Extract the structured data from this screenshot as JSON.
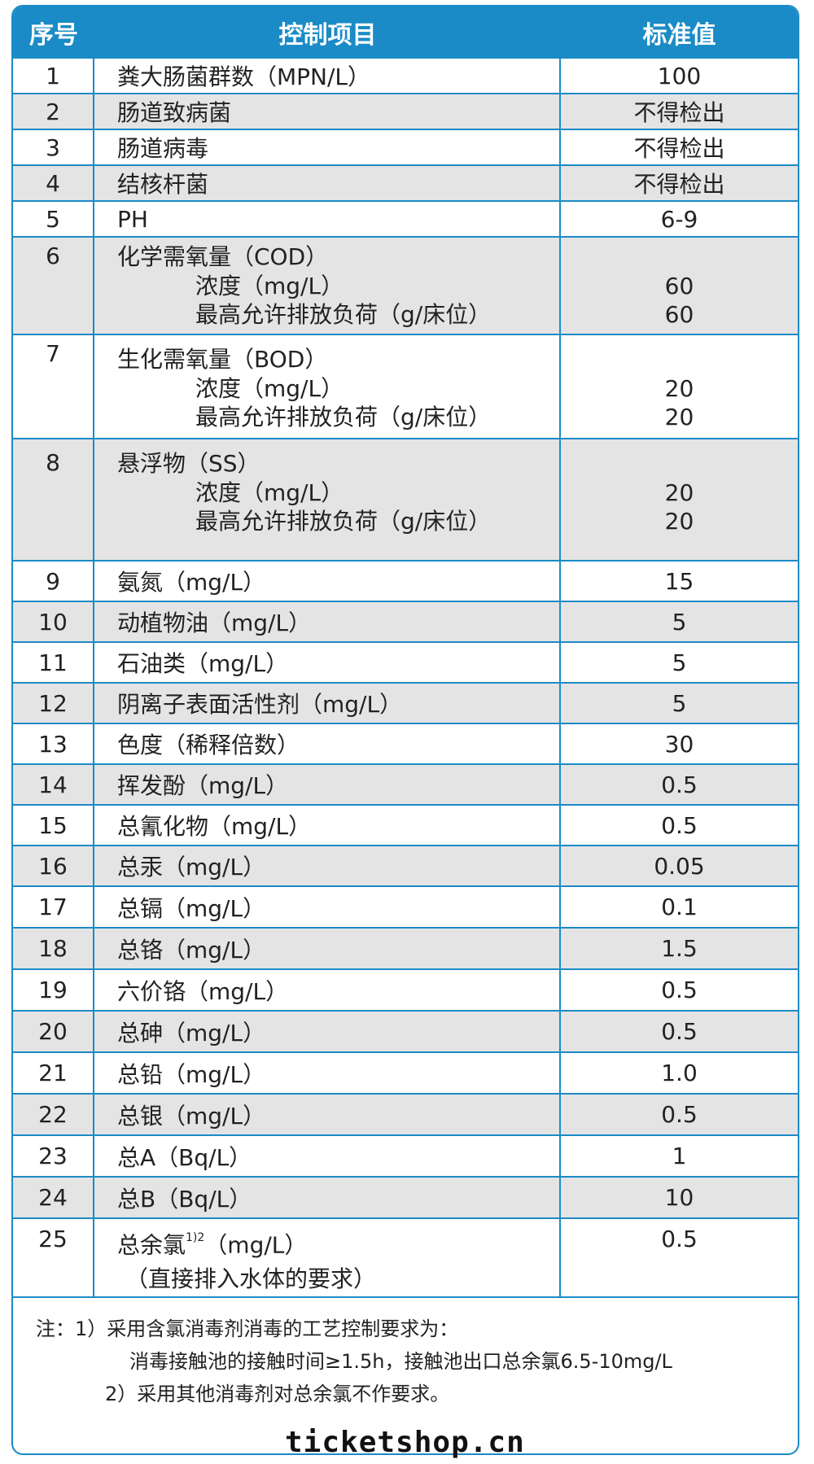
{
  "header": {
    "col_index": "序号",
    "col_item": "控制项目",
    "col_value": "标准值"
  },
  "rows": [
    {
      "n": "1",
      "item": "粪大肠菌群数（MPN/L）",
      "value": "100"
    },
    {
      "n": "2",
      "item": "肠道致病菌",
      "value": "不得检出"
    },
    {
      "n": "3",
      "item": "肠道病毒",
      "value": "不得检出"
    },
    {
      "n": "4",
      "item": "结核杆菌",
      "value": "不得检出"
    },
    {
      "n": "5",
      "item": "PH",
      "value": "6-9"
    },
    {
      "n": "6",
      "item": "化学需氧量（COD）",
      "sub1": "浓度（mg/L）",
      "sub2": "最高允许排放负荷（g/床位）",
      "v1": "60",
      "v2": "60"
    },
    {
      "n": "7",
      "item": "生化需氧量（BOD）",
      "sub1": "浓度（mg/L）",
      "sub2": "最高允许排放负荷（g/床位）",
      "v1": "20",
      "v2": "20"
    },
    {
      "n": "8",
      "item": "悬浮物（SS）",
      "sub1": "浓度（mg/L）",
      "sub2": "最高允许排放负荷（g/床位）",
      "v1": "20",
      "v2": "20"
    },
    {
      "n": "9",
      "item": "氨氮（mg/L）",
      "value": "15"
    },
    {
      "n": "10",
      "item": "动植物油（mg/L）",
      "value": "5"
    },
    {
      "n": "11",
      "item": "石油类（mg/L）",
      "value": "5"
    },
    {
      "n": "12",
      "item": "阴离子表面活性剂（mg/L）",
      "value": "5"
    },
    {
      "n": "13",
      "item": "色度（稀释倍数）",
      "value": "30"
    },
    {
      "n": "14",
      "item": "挥发酚（mg/L）",
      "value": "0.5"
    },
    {
      "n": "15",
      "item": "总氰化物（mg/L）",
      "value": "0.5"
    },
    {
      "n": "16",
      "item": "总汞（mg/L）",
      "value": "0.05"
    },
    {
      "n": "17",
      "item": "总镉（mg/L）",
      "value": "0.1"
    },
    {
      "n": "18",
      "item": "总铬（mg/L）",
      "value": "1.5"
    },
    {
      "n": "19",
      "item": "六价铬（mg/L）",
      "value": "0.5"
    },
    {
      "n": "20",
      "item": "总砷（mg/L）",
      "value": "0.5"
    },
    {
      "n": "21",
      "item": "总铅（mg/L）",
      "value": "1.0"
    },
    {
      "n": "22",
      "item": "总银（mg/L）",
      "value": "0.5"
    },
    {
      "n": "23",
      "item": "总A（Bq/L）",
      "value": "1"
    },
    {
      "n": "24",
      "item": "总B（Bq/L）",
      "value": "10"
    },
    {
      "n": "25",
      "item_a": "总余氯",
      "item_sup": "1)2",
      "item_b": "（mg/L）",
      "sub": "（直接排入水体的要求）",
      "value": "0.5"
    }
  ],
  "notes": {
    "line1": "注：1）采用含氯消毒剂消毒的工艺控制要求为：",
    "line2": "消毒接触池的接触时间≥1.5h，接触池出口总余氯6.5-10mg/L",
    "line3": "2）采用其他消毒剂对总余氯不作要求。"
  },
  "watermark": "ticketshop.cn",
  "colors": {
    "header_bg": "#1a8bc6",
    "row_shade": "#e4e4e4",
    "grid": "#1a8bc6"
  }
}
